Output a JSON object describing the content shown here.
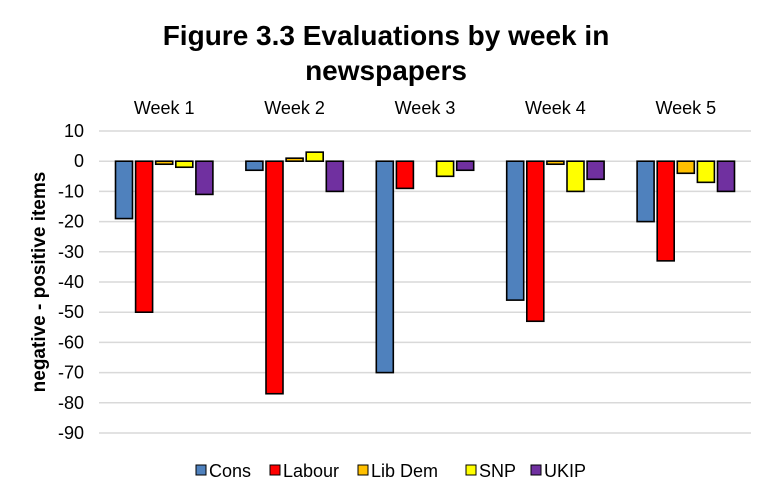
{
  "chart_data": {
    "type": "bar",
    "title_lines": [
      "Figure 3.3 Evaluations by week in",
      "newspapers"
    ],
    "title": "Figure 3.3 Evaluations by week in newspapers",
    "xlabel": "",
    "ylabel": "negative - positive items",
    "categories": [
      "Week 1",
      "Week 2",
      "Week 3",
      "Week 4",
      "Week 5"
    ],
    "category_axis_position": "top",
    "ylim": [
      -90,
      10
    ],
    "yticks": [
      10,
      0,
      -10,
      -20,
      -30,
      -40,
      -50,
      -60,
      -70,
      -80,
      -90
    ],
    "grid": true,
    "legend_position": "bottom",
    "series": [
      {
        "name": "Cons",
        "color": "#4f81bd",
        "values": [
          -19,
          -3,
          -70,
          -46,
          -20
        ]
      },
      {
        "name": "Labour",
        "color": "#ff0000",
        "values": [
          -50,
          -77,
          -9,
          -53,
          -33
        ]
      },
      {
        "name": "Lib Dem",
        "color": "#ffc000",
        "values": [
          -1,
          1,
          0,
          -1,
          -4
        ]
      },
      {
        "name": "SNP",
        "color": "#ffff00",
        "values": [
          -2,
          3,
          -5,
          -10,
          -7
        ]
      },
      {
        "name": "UKIP",
        "color": "#7030a0",
        "values": [
          -11,
          -10,
          -3,
          -6,
          -10
        ]
      }
    ]
  }
}
